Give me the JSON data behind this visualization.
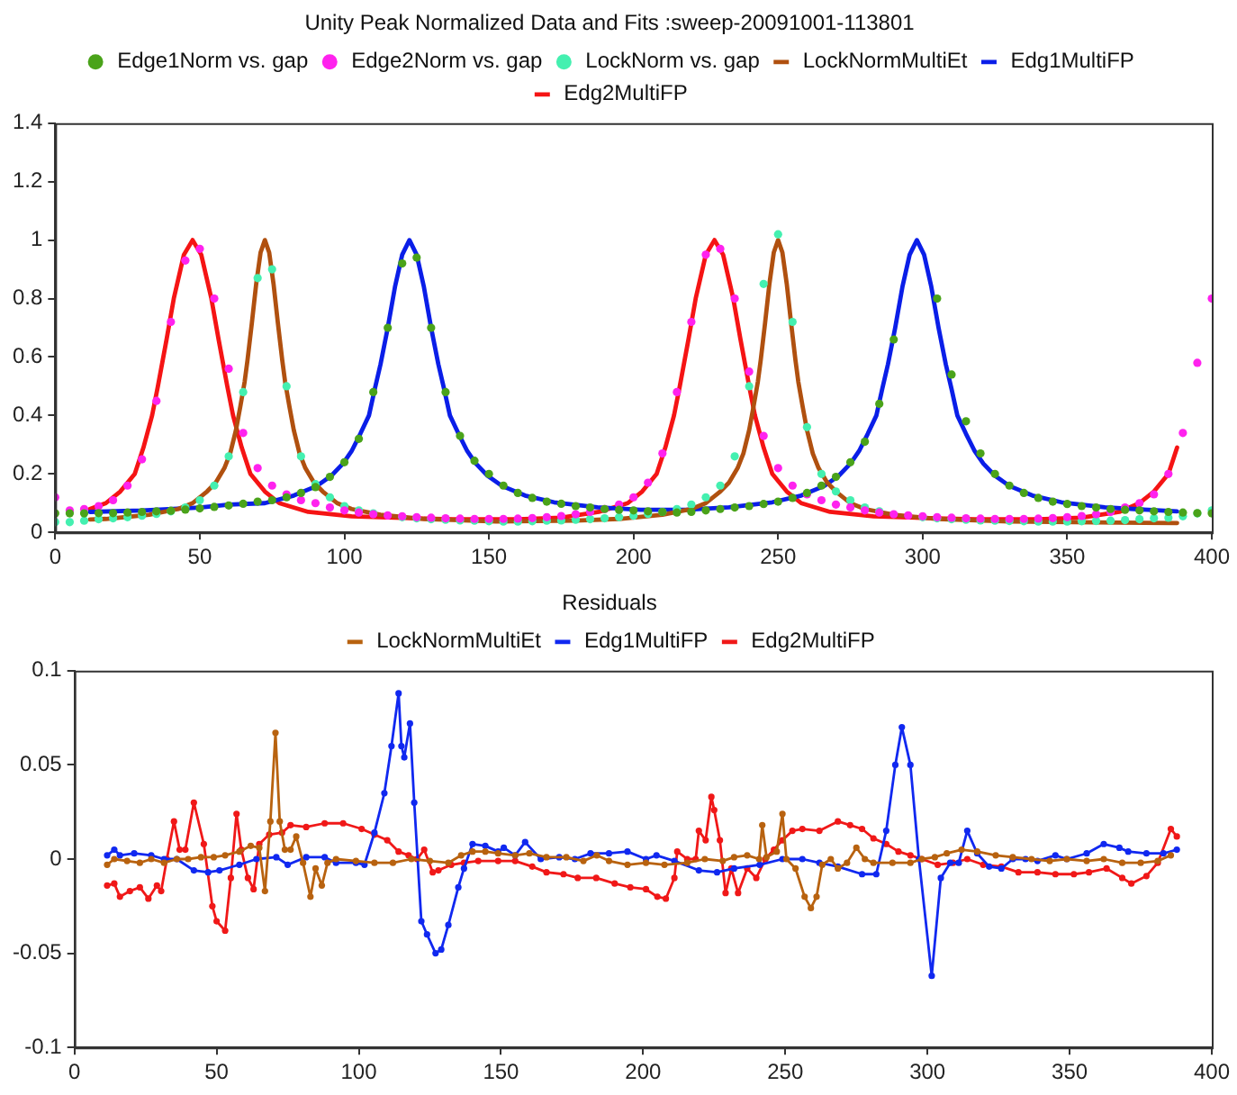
{
  "chart_data": [
    {
      "type": "scatter",
      "title": "Unity Peak Normalized Data and Fits :sweep-20091001-113801",
      "xlim": [
        0,
        400
      ],
      "xticks": [
        0,
        50,
        100,
        150,
        200,
        250,
        300,
        350,
        400
      ],
      "ylim": [
        0,
        1.4
      ],
      "yticks": [
        0,
        0.2,
        0.4,
        0.6,
        0.8,
        1,
        1.2,
        1.4
      ],
      "legend": "top",
      "x": [
        0,
        5,
        10,
        15,
        20,
        25,
        30,
        35,
        40,
        45,
        50,
        55,
        60,
        65,
        70,
        75,
        80,
        85,
        90,
        95,
        100,
        105,
        110,
        115,
        120,
        125,
        130,
        135,
        140,
        145,
        150,
        155,
        160,
        165,
        170,
        175,
        180,
        185,
        190,
        195,
        200,
        205,
        210,
        215,
        220,
        225,
        230,
        235,
        240,
        245,
        250,
        255,
        260,
        265,
        270,
        275,
        280,
        285,
        290,
        295,
        300,
        305,
        310,
        315,
        320,
        325,
        330,
        335,
        340,
        345,
        350,
        355,
        360,
        365,
        370,
        375,
        380,
        385,
        390,
        395,
        400
      ],
      "series": [
        {
          "name": "Edge1Norm vs. gap",
          "type": "scatter",
          "marker": "circle",
          "color": "#4aa31a",
          "values": [
            0.065,
            0.065,
            0.065,
            0.066,
            0.066,
            0.068,
            0.07,
            0.072,
            0.074,
            0.078,
            0.082,
            0.087,
            0.092,
            0.098,
            0.105,
            0.11,
            0.12,
            0.135,
            0.155,
            0.19,
            0.24,
            0.32,
            0.48,
            0.7,
            0.92,
            0.94,
            0.7,
            0.48,
            0.33,
            0.245,
            0.2,
            0.16,
            0.135,
            0.118,
            0.105,
            0.098,
            0.09,
            0.085,
            0.08,
            0.077,
            0.075,
            0.072,
            0.07,
            0.068,
            0.07,
            0.075,
            0.08,
            0.085,
            0.09,
            0.097,
            0.105,
            0.118,
            0.135,
            0.16,
            0.19,
            0.24,
            0.31,
            0.44,
            0.66,
            null,
            null,
            0.8,
            0.54,
            0.38,
            0.27,
            0.2,
            0.16,
            0.135,
            0.118,
            0.105,
            0.097,
            0.09,
            0.085,
            0.08,
            0.077,
            0.075,
            0.072,
            0.07,
            0.068,
            0.066,
            0.065
          ]
        },
        {
          "name": "Edge2Norm vs. gap",
          "type": "scatter",
          "marker": "circle",
          "color": "#ff22ee",
          "values": [
            0.12,
            0.075,
            0.08,
            0.09,
            0.11,
            0.16,
            0.25,
            0.45,
            0.72,
            0.93,
            0.97,
            0.8,
            0.56,
            0.34,
            0.22,
            0.16,
            0.13,
            0.11,
            0.1,
            0.085,
            0.075,
            0.068,
            0.062,
            0.058,
            0.055,
            0.052,
            0.05,
            0.048,
            0.047,
            0.046,
            0.046,
            0.046,
            0.047,
            0.049,
            0.052,
            0.056,
            0.062,
            0.07,
            0.08,
            0.095,
            0.12,
            0.17,
            0.27,
            0.48,
            0.72,
            0.95,
            0.97,
            0.8,
            0.55,
            0.33,
            0.22,
            0.16,
            0.13,
            0.11,
            0.095,
            0.085,
            0.075,
            0.068,
            0.062,
            0.058,
            0.055,
            0.052,
            0.05,
            0.048,
            0.047,
            0.046,
            0.046,
            0.046,
            0.047,
            0.049,
            0.052,
            0.056,
            0.062,
            0.07,
            0.085,
            0.1,
            0.13,
            0.2,
            0.34,
            0.58,
            0.8
          ]
        },
        {
          "name": "LockNorm vs. gap",
          "type": "scatter",
          "marker": "circle",
          "color": "#44f0b0",
          "values": [
            0.035,
            0.035,
            0.04,
            0.045,
            0.048,
            0.052,
            0.057,
            0.063,
            0.072,
            0.085,
            0.11,
            0.16,
            0.26,
            0.48,
            0.87,
            0.9,
            0.5,
            0.26,
            0.165,
            0.12,
            0.09,
            0.075,
            0.065,
            null,
            0.052,
            0.048,
            0.045,
            0.043,
            0.041,
            0.04,
            0.038,
            0.037,
            0.037,
            0.038,
            0.04,
            0.041,
            0.043,
            0.045,
            0.048,
            0.052,
            0.057,
            0.063,
            0.07,
            0.08,
            0.095,
            0.12,
            0.16,
            0.26,
            0.5,
            0.85,
            1.02,
            0.72,
            0.36,
            0.2,
            0.14,
            0.11,
            0.085,
            0.072,
            null,
            null,
            0.052,
            0.048,
            0.045,
            0.043,
            0.041,
            0.04,
            0.039,
            0.038,
            0.037,
            0.037,
            0.037,
            0.038,
            0.039,
            0.04,
            0.042,
            0.045,
            0.048,
            0.05,
            0.055,
            0.065,
            0.075
          ]
        },
        {
          "name": "LockNormMultiEt",
          "type": "line",
          "marker": "none",
          "color": "#b0500f",
          "x": [
            12,
            17.5,
            32.5,
            42.5,
            47.5,
            52.5,
            55.5,
            58.5,
            60.5,
            62.5,
            64,
            65.5,
            66.5,
            68,
            69.5,
            71,
            72.5,
            74,
            75.5,
            77,
            78.5,
            79.5,
            81,
            82.5,
            84.5,
            86.5,
            89.5,
            92.5,
            97.5,
            102.5,
            112.5,
            127.5,
            152.5,
            180,
            195,
            210,
            220,
            225,
            230,
            233,
            236,
            238,
            240,
            241.5,
            243,
            244,
            245.5,
            247,
            248.5,
            250,
            251.5,
            253,
            254.5,
            256,
            257,
            258.5,
            260,
            262,
            264,
            267,
            270,
            275,
            280,
            290,
            305,
            330,
            360,
            388
          ],
          "values": [
            0.044,
            0.046,
            0.06,
            0.08,
            0.1,
            0.14,
            0.17,
            0.22,
            0.27,
            0.35,
            0.43,
            0.515,
            0.59,
            0.716,
            0.85,
            0.957,
            1,
            0.957,
            0.85,
            0.716,
            0.59,
            0.515,
            0.43,
            0.35,
            0.27,
            0.22,
            0.17,
            0.14,
            0.1,
            0.08,
            0.06,
            0.046,
            0.037,
            0.04,
            0.046,
            0.06,
            0.08,
            0.1,
            0.14,
            0.17,
            0.22,
            0.27,
            0.35,
            0.43,
            0.515,
            0.59,
            0.716,
            0.85,
            0.957,
            1,
            0.957,
            0.85,
            0.716,
            0.59,
            0.515,
            0.43,
            0.35,
            0.27,
            0.22,
            0.17,
            0.14,
            0.1,
            0.08,
            0.06,
            0.046,
            0.037,
            0.034,
            0.032
          ]
        },
        {
          "name": "Edg1MultiFP",
          "type": "line",
          "marker": "none",
          "color": "#0a1ee8",
          "x": [
            12,
            30,
            50,
            60,
            72.5,
            82.5,
            90.5,
            95.5,
            99.5,
            102.5,
            105.5,
            108.5,
            110.5,
            112.5,
            115,
            117.5,
            120,
            122.5,
            125,
            127.5,
            130,
            132.5,
            134.5,
            136.5,
            139.5,
            142.5,
            145.5,
            149.5,
            154.5,
            162.5,
            172.5,
            187.5,
            202.5,
            210,
            218,
            233,
            248,
            258,
            266,
            271,
            275,
            278,
            281,
            284,
            286,
            288,
            290.5,
            293,
            295.5,
            298,
            300.5,
            303,
            305.5,
            308,
            310,
            312,
            315,
            318,
            321,
            325,
            330,
            338,
            348,
            363,
            378,
            388
          ],
          "values": [
            0.07,
            0.075,
            0.085,
            0.095,
            0.1,
            0.126,
            0.159,
            0.194,
            0.235,
            0.278,
            0.337,
            0.4,
            0.49,
            0.575,
            0.7,
            0.84,
            0.95,
            1,
            0.95,
            0.84,
            0.7,
            0.575,
            0.49,
            0.4,
            0.337,
            0.278,
            0.235,
            0.194,
            0.159,
            0.126,
            0.103,
            0.086,
            0.077,
            0.077,
            0.077,
            0.086,
            0.103,
            0.126,
            0.159,
            0.194,
            0.235,
            0.278,
            0.337,
            0.4,
            0.49,
            0.575,
            0.7,
            0.84,
            0.95,
            1,
            0.95,
            0.84,
            0.7,
            0.575,
            0.49,
            0.4,
            0.337,
            0.278,
            0.235,
            0.194,
            0.159,
            0.126,
            0.103,
            0.086,
            0.077,
            0.072
          ]
        },
        {
          "name": "Edg2MultiFP",
          "type": "line",
          "marker": "none",
          "color": "#f51414",
          "x": [
            12,
            17.5,
            22.5,
            27.5,
            30.5,
            33.5,
            35.5,
            38.5,
            41,
            44.5,
            47.5,
            50.5,
            54,
            56.5,
            59.5,
            61.5,
            64.5,
            67.5,
            72.5,
            77.5,
            87.5,
            102.5,
            127.5,
            137.5,
            160,
            175,
            188,
            198,
            203,
            208,
            211,
            214,
            216,
            219,
            221.5,
            225,
            228,
            231,
            234.5,
            237,
            240,
            242,
            245,
            248,
            253,
            258,
            268,
            283,
            308,
            318,
            340,
            355,
            368,
            375,
            380,
            385,
            388
          ],
          "values": [
            0.08,
            0.1,
            0.14,
            0.2,
            0.29,
            0.4,
            0.5,
            0.66,
            0.8,
            0.95,
            1,
            0.95,
            0.8,
            0.66,
            0.5,
            0.4,
            0.29,
            0.2,
            0.14,
            0.1,
            0.07,
            0.055,
            0.047,
            0.045,
            0.045,
            0.05,
            0.07,
            0.1,
            0.14,
            0.2,
            0.29,
            0.4,
            0.5,
            0.66,
            0.8,
            0.95,
            1,
            0.95,
            0.8,
            0.66,
            0.5,
            0.4,
            0.29,
            0.2,
            0.14,
            0.1,
            0.07,
            0.055,
            0.047,
            0.045,
            0.045,
            0.05,
            0.07,
            0.1,
            0.14,
            0.2,
            0.29
          ]
        }
      ]
    },
    {
      "type": "line",
      "title": "Residuals",
      "xlim": [
        0,
        400
      ],
      "xticks": [
        0,
        50,
        100,
        150,
        200,
        250,
        300,
        350,
        400
      ],
      "ylim": [
        -0.1,
        0.1
      ],
      "yticks": [
        -0.1,
        -0.05,
        0,
        0.05,
        0.1
      ],
      "legend": "top",
      "marker": "circle",
      "series": [
        {
          "name": "LockNormMultiEt",
          "color": "#b8620f",
          "x": [
            11.5,
            14,
            18.5,
            23,
            27,
            31.5,
            36,
            40,
            44.5,
            49,
            53,
            58,
            62,
            65,
            67,
            68.9,
            70.7,
            72.2,
            74,
            76,
            78,
            80.4,
            83,
            84.8,
            87,
            89,
            92,
            99,
            105.5,
            112,
            118.5,
            125,
            131.5,
            136,
            140,
            144.5,
            149,
            155,
            160,
            166,
            173,
            179,
            183.7,
            188,
            194.5,
            201,
            207.5,
            215.5,
            221.7,
            228,
            232,
            236.6,
            240.8,
            241.9,
            243.4,
            247,
            249,
            250.4,
            253.6,
            256.8,
            259,
            261,
            263,
            266,
            268.5,
            271.7,
            275,
            278,
            281,
            287.7,
            294,
            298,
            302.6,
            306.8,
            312,
            317.5,
            324,
            330,
            336.6,
            343,
            349,
            356,
            362,
            368.5,
            375,
            381,
            385.6
          ],
          "values": [
            -0.003,
            0,
            -0.001,
            -0.002,
            0,
            -0.002,
            0,
            0,
            0.001,
            0.001,
            0.002,
            0.004,
            0.007,
            0.006,
            -0.017,
            0.02,
            0.067,
            0.02,
            0.005,
            0.005,
            0.012,
            -0.002,
            -0.02,
            -0.005,
            -0.014,
            -0.002,
            0,
            -0.001,
            -0.002,
            -0.002,
            0,
            -0.001,
            -0.002,
            0.002,
            0.004,
            0.004,
            0.003,
            0.002,
            0.003,
            0.001,
            0.001,
            -0.001,
            0.002,
            -0.001,
            -0.003,
            -0.002,
            -0.003,
            -0.002,
            0,
            -0.001,
            0.001,
            0.002,
            0,
            0.018,
            0.001,
            0.004,
            0.024,
            0,
            -0.005,
            -0.02,
            -0.026,
            -0.02,
            -0.003,
            0,
            -0.005,
            -0.002,
            0.006,
            0,
            -0.002,
            -0.002,
            -0.002,
            0,
            0.001,
            0.003,
            0.005,
            0.004,
            0.002,
            0.001,
            0,
            -0.001,
            0,
            -0.001,
            0,
            -0.002,
            -0.002,
            -0.001,
            0.002
          ]
        },
        {
          "name": "Edg1MultiFP",
          "color": "#1028f0",
          "x": [
            11.5,
            14,
            16,
            21,
            27,
            31.5,
            36,
            42,
            47,
            51,
            58,
            64,
            71,
            75,
            81.5,
            88,
            92,
            99,
            102,
            105.5,
            109,
            111.5,
            114,
            115,
            116,
            118,
            119.5,
            122,
            124,
            127,
            129,
            131.5,
            135,
            137,
            140,
            144.5,
            149,
            151,
            155,
            158.5,
            164,
            170.5,
            176,
            181.5,
            188,
            194.5,
            201,
            204.7,
            211,
            219.6,
            226,
            232,
            241,
            249,
            256,
            262,
            268.5,
            277,
            282,
            285.5,
            288.7,
            291,
            294,
            297,
            301.5,
            304.7,
            308,
            311,
            314,
            317.5,
            321.7,
            326,
            330,
            334.5,
            338.7,
            345,
            349,
            356,
            362,
            367.5,
            370.6,
            377,
            383,
            387.7
          ],
          "values": [
            0.002,
            0.005,
            0.002,
            0.003,
            0.002,
            0,
            0,
            -0.006,
            -0.007,
            -0.006,
            -0.003,
            0,
            0.001,
            -0.003,
            0.001,
            0.001,
            -0.002,
            -0.002,
            -0.003,
            0.014,
            0.035,
            0.06,
            0.088,
            0.06,
            0.054,
            0.072,
            0.03,
            -0.033,
            -0.04,
            -0.05,
            -0.048,
            -0.035,
            -0.015,
            -0.005,
            0.008,
            0.007,
            0.004,
            0.006,
            0.002,
            0.009,
            0,
            0.001,
            0,
            0.003,
            0.003,
            0.004,
            0,
            0.002,
            -0.001,
            -0.006,
            -0.007,
            -0.005,
            -0.003,
            0,
            0,
            -0.002,
            -0.004,
            -0.008,
            -0.008,
            0.015,
            0.05,
            0.07,
            0.05,
            0,
            -0.062,
            -0.01,
            -0.002,
            -0.002,
            0.015,
            0.003,
            -0.004,
            -0.005,
            0,
            0,
            -0.001,
            0.002,
            0,
            0.003,
            0.008,
            0.006,
            0.004,
            0.003,
            0.003,
            0.005
          ]
        },
        {
          "name": "Edg2MultiFP",
          "color": "#f01818",
          "x": [
            11.5,
            14,
            16,
            19.5,
            23,
            26,
            29,
            30.5,
            32.5,
            35,
            37,
            39,
            42,
            45.5,
            48.5,
            50,
            53,
            55,
            57,
            58.7,
            61,
            63,
            65,
            68.5,
            73,
            76,
            81.5,
            88,
            94.5,
            101,
            105.5,
            110,
            114,
            117.5,
            120.5,
            123,
            126,
            128,
            132.5,
            137,
            142,
            149,
            155,
            161,
            166,
            172,
            177,
            183.5,
            190,
            195.5,
            201,
            205,
            208,
            211,
            212,
            215.5,
            218.5,
            219.6,
            222,
            224,
            225,
            227,
            229,
            231,
            233.4,
            236.6,
            239.8,
            243,
            246,
            249,
            252.5,
            256,
            262,
            268.5,
            272.8,
            277,
            281,
            285.5,
            289.8,
            294,
            298,
            303.6,
            309,
            314,
            319.6,
            326,
            332,
            338.7,
            345,
            351.5,
            356.8,
            363,
            368.5,
            371.7,
            377,
            381,
            385.6,
            387.7
          ],
          "values": [
            -0.014,
            -0.013,
            -0.02,
            -0.017,
            -0.015,
            -0.021,
            -0.014,
            -0.017,
            0,
            0.02,
            0.005,
            0.005,
            0.03,
            0.008,
            -0.025,
            -0.033,
            -0.038,
            -0.01,
            0.024,
            0.005,
            -0.01,
            -0.016,
            0.008,
            0.013,
            0.014,
            0.018,
            0.017,
            0.019,
            0.019,
            0.016,
            0.013,
            0.01,
            0.004,
            0.002,
            0,
            0.005,
            -0.007,
            -0.006,
            -0.003,
            -0.002,
            -0.001,
            -0.001,
            -0.001,
            -0.004,
            -0.007,
            -0.008,
            -0.01,
            -0.01,
            -0.013,
            -0.015,
            -0.016,
            -0.02,
            -0.021,
            -0.01,
            0.004,
            0,
            0,
            0.015,
            0.01,
            0.033,
            0.026,
            0.01,
            -0.018,
            -0.005,
            -0.018,
            -0.005,
            -0.01,
            0,
            0.005,
            0.01,
            0.015,
            0.016,
            0.015,
            0.02,
            0.018,
            0.016,
            0.011,
            0.008,
            0.004,
            0.002,
            0,
            -0.003,
            -0.002,
            0,
            -0.003,
            -0.004,
            -0.007,
            -0.007,
            -0.008,
            -0.008,
            -0.007,
            -0.005,
            -0.01,
            -0.013,
            -0.009,
            -0.002,
            0.016,
            0.012
          ]
        }
      ]
    }
  ]
}
